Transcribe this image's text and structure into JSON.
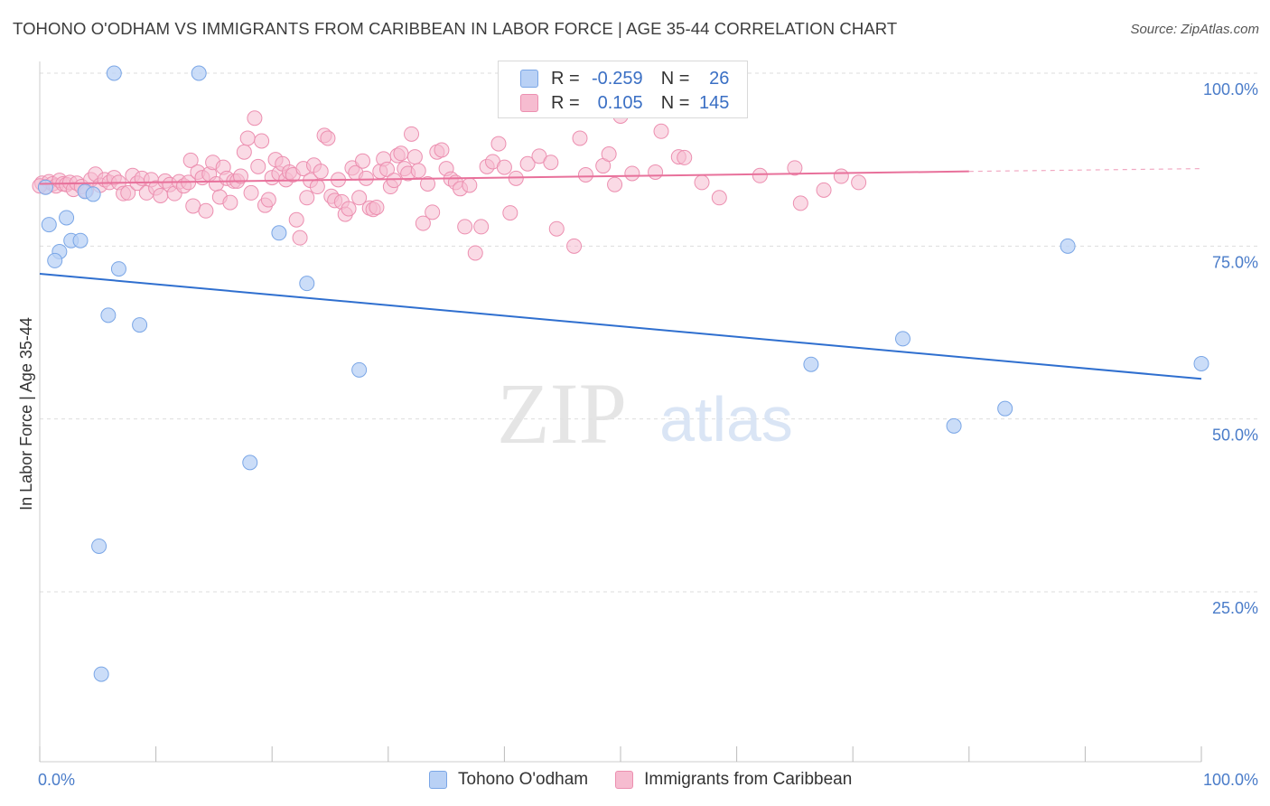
{
  "title": "TOHONO O'ODHAM VS IMMIGRANTS FROM CARIBBEAN IN LABOR FORCE | AGE 35-44 CORRELATION CHART",
  "source": "Source: ZipAtlas.com",
  "watermark": {
    "zip": "ZIP",
    "atlas": "atlas"
  },
  "legend_top": {
    "rows": [
      {
        "r_label": "R =",
        "r_value": "-0.259",
        "n_label": "N =",
        "n_value": "26"
      },
      {
        "r_label": "R =",
        "r_value": "0.105",
        "n_label": "N =",
        "n_value": "145"
      }
    ]
  },
  "legend_bottom": {
    "items": [
      {
        "label": "Tohono O'odham"
      },
      {
        "label": "Immigrants from Caribbean"
      }
    ]
  },
  "colors": {
    "series1_fill": "#b9d1f5",
    "series1_stroke": "#7aa6e6",
    "series1_line": "#2f6fcf",
    "series2_fill": "#f6bcd0",
    "series2_stroke": "#ec8fb0",
    "series2_line": "#e8719b",
    "grid": "#dddddd",
    "tick_text": "#4a7cc9"
  },
  "chart_data": {
    "type": "scatter",
    "title": "TOHONO O'ODHAM VS IMMIGRANTS FROM CARIBBEAN IN LABOR FORCE | AGE 35-44 CORRELATION CHART",
    "xlabel": "",
    "ylabel": "In Labor Force | Age 35-44",
    "xlim": [
      0,
      100
    ],
    "ylim": [
      0,
      102
    ],
    "x_tick_labels": [
      "0.0%",
      "100.0%"
    ],
    "y_ticks": [
      25,
      50,
      75,
      100
    ],
    "y_tick_labels": [
      "25.0%",
      "50.0%",
      "75.0%",
      "100.0%"
    ],
    "series": [
      {
        "name": "Tohono O'odham",
        "r": -0.259,
        "n": 26,
        "trend": {
          "x": [
            0,
            100
          ],
          "y": [
            71.0,
            55.8
          ]
        },
        "points": [
          {
            "x": 6.4,
            "y": 100.0
          },
          {
            "x": 13.7,
            "y": 100.0
          },
          {
            "x": 0.8,
            "y": 78.1
          },
          {
            "x": 2.3,
            "y": 79.1
          },
          {
            "x": 1.7,
            "y": 74.2
          },
          {
            "x": 1.3,
            "y": 72.9
          },
          {
            "x": 2.7,
            "y": 75.8
          },
          {
            "x": 3.5,
            "y": 75.8
          },
          {
            "x": 3.9,
            "y": 82.9
          },
          {
            "x": 4.6,
            "y": 82.5
          },
          {
            "x": 6.8,
            "y": 71.7
          },
          {
            "x": 5.9,
            "y": 65.0
          },
          {
            "x": 8.6,
            "y": 63.6
          },
          {
            "x": 20.6,
            "y": 76.9
          },
          {
            "x": 23.0,
            "y": 69.6
          },
          {
            "x": 27.5,
            "y": 57.1
          },
          {
            "x": 18.1,
            "y": 43.7
          },
          {
            "x": 5.1,
            "y": 31.6
          },
          {
            "x": 5.3,
            "y": 13.1
          },
          {
            "x": 0.5,
            "y": 83.5
          },
          {
            "x": 88.5,
            "y": 75.0
          },
          {
            "x": 74.3,
            "y": 61.6
          },
          {
            "x": 66.4,
            "y": 57.9
          },
          {
            "x": 78.7,
            "y": 49.0
          },
          {
            "x": 83.1,
            "y": 51.5
          },
          {
            "x": 100.0,
            "y": 58.0
          }
        ]
      },
      {
        "name": "Immigrants from Caribbean",
        "r": 0.105,
        "n": 145,
        "trend": {
          "x": [
            0,
            80
          ],
          "y": [
            84.0,
            85.8
          ]
        },
        "trend_dashed": {
          "x": [
            80,
            100
          ],
          "y": [
            85.8,
            86.2
          ]
        },
        "points": [
          {
            "x": 0.2,
            "y": 84.1
          },
          {
            "x": 0.5,
            "y": 83.6
          },
          {
            "x": 0.8,
            "y": 84.3
          },
          {
            "x": 1.1,
            "y": 84.0
          },
          {
            "x": 1.4,
            "y": 83.7
          },
          {
            "x": 1.7,
            "y": 84.5
          },
          {
            "x": 2.0,
            "y": 84.0
          },
          {
            "x": 2.3,
            "y": 83.9
          },
          {
            "x": 2.6,
            "y": 84.2
          },
          {
            "x": 2.9,
            "y": 83.2
          },
          {
            "x": 3.2,
            "y": 84.1
          },
          {
            "x": 3.6,
            "y": 83.6
          },
          {
            "x": 4.0,
            "y": 83.0
          },
          {
            "x": 4.4,
            "y": 84.6
          },
          {
            "x": 4.8,
            "y": 85.4
          },
          {
            "x": 5.2,
            "y": 83.8
          },
          {
            "x": 5.6,
            "y": 84.6
          },
          {
            "x": 6.0,
            "y": 84.2
          },
          {
            "x": 6.4,
            "y": 84.9
          },
          {
            "x": 6.8,
            "y": 84.2
          },
          {
            "x": 7.2,
            "y": 82.6
          },
          {
            "x": 7.6,
            "y": 82.7
          },
          {
            "x": 8.0,
            "y": 85.2
          },
          {
            "x": 8.4,
            "y": 84.1
          },
          {
            "x": 8.8,
            "y": 84.8
          },
          {
            "x": 9.2,
            "y": 82.7
          },
          {
            "x": 9.6,
            "y": 84.6
          },
          {
            "x": 10.0,
            "y": 83.4
          },
          {
            "x": 10.4,
            "y": 82.3
          },
          {
            "x": 10.8,
            "y": 84.4
          },
          {
            "x": 11.2,
            "y": 83.9
          },
          {
            "x": 11.6,
            "y": 82.6
          },
          {
            "x": 12.0,
            "y": 84.3
          },
          {
            "x": 12.4,
            "y": 83.7
          },
          {
            "x": 12.8,
            "y": 84.2
          },
          {
            "x": 13.0,
            "y": 87.4
          },
          {
            "x": 13.2,
            "y": 80.8
          },
          {
            "x": 13.6,
            "y": 85.7
          },
          {
            "x": 14.0,
            "y": 84.9
          },
          {
            "x": 14.3,
            "y": 80.1
          },
          {
            "x": 14.6,
            "y": 85.4
          },
          {
            "x": 14.9,
            "y": 87.1
          },
          {
            "x": 15.2,
            "y": 84.0
          },
          {
            "x": 15.5,
            "y": 82.1
          },
          {
            "x": 15.8,
            "y": 86.4
          },
          {
            "x": 16.1,
            "y": 84.8
          },
          {
            "x": 16.4,
            "y": 81.3
          },
          {
            "x": 16.7,
            "y": 84.4
          },
          {
            "x": 17.0,
            "y": 84.4
          },
          {
            "x": 17.3,
            "y": 85.1
          },
          {
            "x": 17.6,
            "y": 88.6
          },
          {
            "x": 17.9,
            "y": 90.6
          },
          {
            "x": 18.2,
            "y": 82.7
          },
          {
            "x": 18.5,
            "y": 93.5
          },
          {
            "x": 18.8,
            "y": 86.5
          },
          {
            "x": 19.1,
            "y": 90.2
          },
          {
            "x": 19.4,
            "y": 80.9
          },
          {
            "x": 19.7,
            "y": 81.7
          },
          {
            "x": 20.0,
            "y": 84.9
          },
          {
            "x": 20.3,
            "y": 87.5
          },
          {
            "x": 20.6,
            "y": 85.5
          },
          {
            "x": 20.9,
            "y": 86.9
          },
          {
            "x": 21.2,
            "y": 84.6
          },
          {
            "x": 21.5,
            "y": 85.7
          },
          {
            "x": 21.8,
            "y": 85.3
          },
          {
            "x": 22.1,
            "y": 78.8
          },
          {
            "x": 22.4,
            "y": 76.2
          },
          {
            "x": 22.7,
            "y": 86.2
          },
          {
            "x": 23.0,
            "y": 82.0
          },
          {
            "x": 23.3,
            "y": 84.5
          },
          {
            "x": 23.6,
            "y": 86.7
          },
          {
            "x": 23.9,
            "y": 83.6
          },
          {
            "x": 24.2,
            "y": 85.8
          },
          {
            "x": 24.5,
            "y": 91.0
          },
          {
            "x": 24.8,
            "y": 90.6
          },
          {
            "x": 25.1,
            "y": 82.2
          },
          {
            "x": 25.4,
            "y": 81.6
          },
          {
            "x": 25.7,
            "y": 84.6
          },
          {
            "x": 26.0,
            "y": 81.4
          },
          {
            "x": 26.3,
            "y": 79.6
          },
          {
            "x": 26.6,
            "y": 80.4
          },
          {
            "x": 26.9,
            "y": 86.3
          },
          {
            "x": 27.2,
            "y": 85.6
          },
          {
            "x": 27.5,
            "y": 82.0
          },
          {
            "x": 27.8,
            "y": 87.3
          },
          {
            "x": 28.1,
            "y": 84.8
          },
          {
            "x": 28.4,
            "y": 80.5
          },
          {
            "x": 28.7,
            "y": 80.3
          },
          {
            "x": 29.0,
            "y": 80.6
          },
          {
            "x": 29.3,
            "y": 85.8
          },
          {
            "x": 29.6,
            "y": 87.6
          },
          {
            "x": 29.9,
            "y": 86.1
          },
          {
            "x": 30.2,
            "y": 83.6
          },
          {
            "x": 30.5,
            "y": 84.5
          },
          {
            "x": 30.8,
            "y": 88.1
          },
          {
            "x": 31.1,
            "y": 88.4
          },
          {
            "x": 31.4,
            "y": 86.2
          },
          {
            "x": 31.7,
            "y": 85.5
          },
          {
            "x": 32.0,
            "y": 91.2
          },
          {
            "x": 32.3,
            "y": 87.9
          },
          {
            "x": 32.6,
            "y": 85.9
          },
          {
            "x": 33.0,
            "y": 78.3
          },
          {
            "x": 33.4,
            "y": 84.0
          },
          {
            "x": 33.8,
            "y": 79.9
          },
          {
            "x": 34.2,
            "y": 88.6
          },
          {
            "x": 34.6,
            "y": 88.9
          },
          {
            "x": 35.0,
            "y": 86.2
          },
          {
            "x": 35.4,
            "y": 84.7
          },
          {
            "x": 35.8,
            "y": 84.2
          },
          {
            "x": 36.2,
            "y": 83.3
          },
          {
            "x": 36.6,
            "y": 77.8
          },
          {
            "x": 37.0,
            "y": 83.8
          },
          {
            "x": 37.5,
            "y": 74.0
          },
          {
            "x": 38.0,
            "y": 77.8
          },
          {
            "x": 38.5,
            "y": 86.5
          },
          {
            "x": 39.0,
            "y": 87.2
          },
          {
            "x": 39.5,
            "y": 89.8
          },
          {
            "x": 40.0,
            "y": 86.4
          },
          {
            "x": 40.5,
            "y": 79.8
          },
          {
            "x": 41.0,
            "y": 84.8
          },
          {
            "x": 42.0,
            "y": 86.9
          },
          {
            "x": 43.0,
            "y": 88.0
          },
          {
            "x": 44.0,
            "y": 87.1
          },
          {
            "x": 44.5,
            "y": 77.5
          },
          {
            "x": 46.0,
            "y": 75.0
          },
          {
            "x": 46.5,
            "y": 90.6
          },
          {
            "x": 47.0,
            "y": 85.3
          },
          {
            "x": 48.5,
            "y": 86.6
          },
          {
            "x": 49.0,
            "y": 88.3
          },
          {
            "x": 49.5,
            "y": 83.9
          },
          {
            "x": 50.0,
            "y": 93.8
          },
          {
            "x": 51.0,
            "y": 85.5
          },
          {
            "x": 53.0,
            "y": 85.7
          },
          {
            "x": 53.5,
            "y": 91.6
          },
          {
            "x": 55.0,
            "y": 87.9
          },
          {
            "x": 55.5,
            "y": 87.8
          },
          {
            "x": 57.0,
            "y": 84.2
          },
          {
            "x": 58.5,
            "y": 82.0
          },
          {
            "x": 62.0,
            "y": 85.2
          },
          {
            "x": 65.0,
            "y": 86.3
          },
          {
            "x": 65.5,
            "y": 81.2
          },
          {
            "x": 67.5,
            "y": 83.1
          },
          {
            "x": 69.0,
            "y": 85.1
          },
          {
            "x": 70.5,
            "y": 84.2
          },
          {
            "x": 0.0,
            "y": 83.7
          }
        ]
      }
    ]
  }
}
